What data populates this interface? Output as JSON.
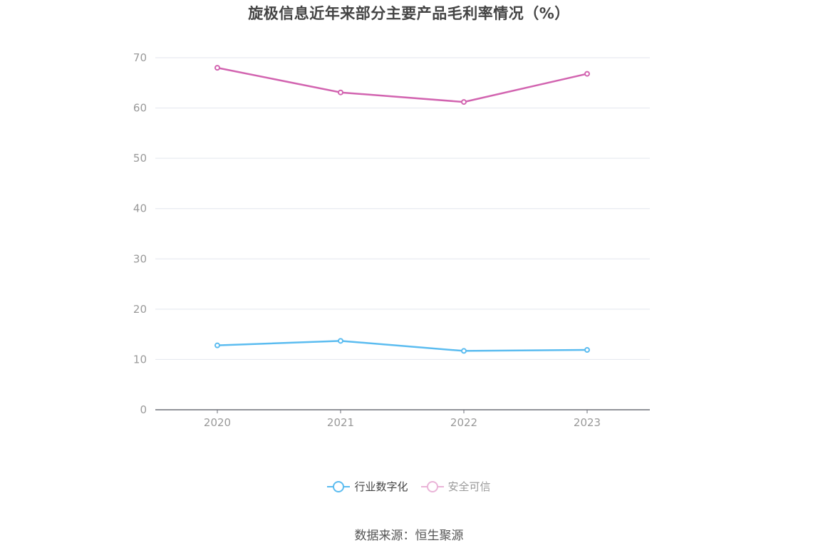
{
  "title": "旋极信息近年来部分主要产品毛利率情况（%）",
  "source": "数据来源：恒生聚源",
  "colors": {
    "series1": "#5bbcf0",
    "series2": "#d264b0",
    "series2_light": "#eab4d8",
    "grid": "#e3e6ee",
    "axis": "#6e7079",
    "tick_text": "#999999"
  },
  "legend": [
    {
      "name": "行业数字化",
      "color": "#5bbcf0",
      "active": true
    },
    {
      "name": "安全可信",
      "color": "#eab4d8",
      "active": false
    }
  ],
  "chart_data": {
    "type": "line",
    "title": "旋极信息近年来部分主要产品毛利率情况（%）",
    "categories": [
      "2020",
      "2021",
      "2022",
      "2023"
    ],
    "series": [
      {
        "name": "行业数字化",
        "values": [
          12.8,
          13.7,
          11.7,
          11.9
        ],
        "color": "#5bbcf0"
      },
      {
        "name": "安全可信",
        "values": [
          68.0,
          63.1,
          61.2,
          66.8
        ],
        "color": "#d264b0"
      }
    ],
    "ylim": [
      0,
      70
    ],
    "yticks": [
      0,
      10,
      20,
      30,
      40,
      50,
      60,
      70
    ],
    "xlabel": "",
    "ylabel": "",
    "grid": true,
    "legend_position": "bottom-center"
  }
}
